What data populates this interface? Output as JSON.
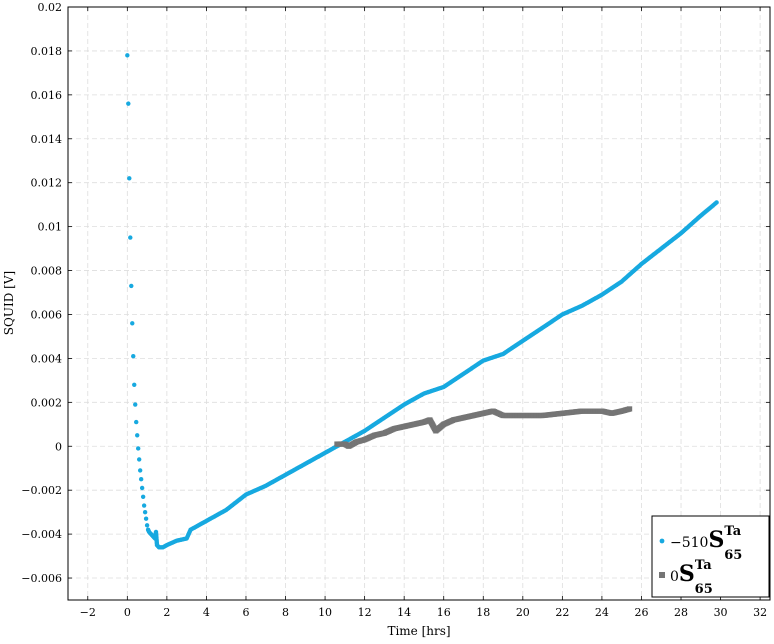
{
  "chart_data": {
    "type": "scatter",
    "title": "",
    "xlabel": "Time [hrs]",
    "ylabel": "SQUID [V]",
    "xlim": [
      -3,
      32.5
    ],
    "ylim": [
      -0.007,
      0.02
    ],
    "grid": true,
    "legend": "bottom-right",
    "xticks": [
      "−2",
      "0",
      "2",
      "4",
      "6",
      "8",
      "10",
      "12",
      "14",
      "16",
      "18",
      "20",
      "22",
      "24",
      "26",
      "28",
      "30",
      "32"
    ],
    "yticks": [
      "−0.006",
      "−0.004",
      "−0.002",
      "0",
      "0.002",
      "0.004",
      "0.006",
      "0.008",
      "0.01",
      "0.012",
      "0.014",
      "0.016",
      "0.018",
      "0.02"
    ],
    "series": [
      {
        "name_prefix": "−510",
        "name_main": "S",
        "name_sup": "Ta",
        "name_sub": "65",
        "marker": "circle",
        "color": "#17a9e0",
        "points": [
          [
            0.0,
            0.0178
          ],
          [
            0.05,
            0.0156
          ],
          [
            0.1,
            0.0122
          ],
          [
            0.15,
            0.0095
          ],
          [
            0.2,
            0.0073
          ],
          [
            0.25,
            0.0056
          ],
          [
            0.3,
            0.0041
          ],
          [
            0.35,
            0.0028
          ],
          [
            0.4,
            0.0019
          ],
          [
            0.45,
            0.0011
          ],
          [
            0.5,
            0.0005
          ],
          [
            0.55,
            -0.0001
          ],
          [
            0.6,
            -0.0006
          ],
          [
            0.65,
            -0.0011
          ],
          [
            0.7,
            -0.0015
          ],
          [
            0.75,
            -0.0019
          ],
          [
            0.8,
            -0.0023
          ],
          [
            0.85,
            -0.0027
          ],
          [
            0.9,
            -0.003
          ],
          [
            0.95,
            -0.0033
          ],
          [
            1.0,
            -0.0036
          ],
          [
            1.05,
            -0.0038
          ],
          [
            1.1,
            -0.0039
          ],
          [
            1.2,
            -0.004
          ],
          [
            1.3,
            -0.0041
          ],
          [
            1.4,
            -0.0042
          ],
          [
            1.45,
            -0.0039
          ],
          [
            1.5,
            -0.0045
          ],
          [
            1.6,
            -0.0046
          ],
          [
            1.8,
            -0.0046
          ],
          [
            2.0,
            -0.0045
          ],
          [
            2.5,
            -0.0043
          ],
          [
            3.0,
            -0.0042
          ],
          [
            3.2,
            -0.0038
          ],
          [
            4.0,
            -0.0034
          ],
          [
            5.0,
            -0.0029
          ],
          [
            6.0,
            -0.0022
          ],
          [
            7.0,
            -0.0018
          ],
          [
            8.0,
            -0.0013
          ],
          [
            9.0,
            -0.0008
          ],
          [
            10.0,
            -0.0003
          ],
          [
            11.0,
            0.0002
          ],
          [
            12.0,
            0.0007
          ],
          [
            13.0,
            0.0013
          ],
          [
            14.0,
            0.0019
          ],
          [
            15.0,
            0.0024
          ],
          [
            16.0,
            0.0027
          ],
          [
            17.0,
            0.0033
          ],
          [
            18.0,
            0.0039
          ],
          [
            19.0,
            0.0042
          ],
          [
            20.0,
            0.0048
          ],
          [
            21.0,
            0.0054
          ],
          [
            22.0,
            0.006
          ],
          [
            23.0,
            0.0064
          ],
          [
            24.0,
            0.0069
          ],
          [
            25.0,
            0.0075
          ],
          [
            26.0,
            0.0083
          ],
          [
            27.0,
            0.009
          ],
          [
            28.0,
            0.0097
          ],
          [
            29.0,
            0.0105
          ],
          [
            29.8,
            0.0111
          ]
        ]
      },
      {
        "name_prefix": "0",
        "name_main": "S",
        "name_sup": "Ta",
        "name_sub": "65",
        "marker": "square",
        "color": "#757575",
        "points": [
          [
            10.6,
            0.0001
          ],
          [
            11.0,
            0.0001
          ],
          [
            11.2,
            0.0
          ],
          [
            11.6,
            0.0002
          ],
          [
            12.0,
            0.0003
          ],
          [
            12.5,
            0.0005
          ],
          [
            13.0,
            0.0006
          ],
          [
            13.5,
            0.0008
          ],
          [
            14.0,
            0.0009
          ],
          [
            14.5,
            0.001
          ],
          [
            15.0,
            0.0011
          ],
          [
            15.3,
            0.0012
          ],
          [
            15.6,
            0.0007
          ],
          [
            16.0,
            0.001
          ],
          [
            16.5,
            0.0012
          ],
          [
            17.0,
            0.0013
          ],
          [
            17.5,
            0.0014
          ],
          [
            18.0,
            0.0015
          ],
          [
            18.5,
            0.0016
          ],
          [
            19.0,
            0.0014
          ],
          [
            20.0,
            0.0014
          ],
          [
            21.0,
            0.0014
          ],
          [
            22.0,
            0.0015
          ],
          [
            23.0,
            0.0016
          ],
          [
            24.0,
            0.0016
          ],
          [
            24.5,
            0.0015
          ],
          [
            25.0,
            0.0016
          ],
          [
            25.4,
            0.0017
          ]
        ]
      }
    ]
  }
}
